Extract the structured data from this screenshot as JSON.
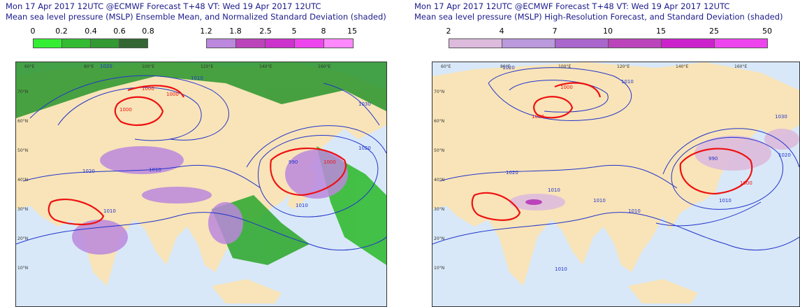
{
  "left_panel": {
    "title_line1": "Mon 17 Apr 2017 12UTC @ECMWF Forecast T+48 VT: Wed 19 Apr 2017 12UTC",
    "title_line2": "Mean sea level pressure (MSLP) Ensemble Mean, and Normalized Standard Deviation (shaded)",
    "colorbar_green": {
      "labels": [
        "0",
        "0.2",
        "0.4",
        "0.6",
        "0.8"
      ],
      "colors": [
        "#33ee33",
        "#33bb33",
        "#339933",
        "#336633"
      ]
    },
    "colorbar_purple": {
      "labels": [
        "1.2",
        "1.8",
        "2.5",
        "5",
        "8",
        "15"
      ],
      "colors": [
        "#bb88dd",
        "#bb44bb",
        "#cc33cc",
        "#ee44ee",
        "#ff88ff"
      ]
    },
    "contour_labels": [
      "1020",
      "1010",
      "1000",
      "1000",
      "1000",
      "990",
      "1000",
      "1010",
      "1020",
      "1010",
      "1010",
      "1030",
      "1020"
    ]
  },
  "right_panel": {
    "title_line1": "Mon 17 Apr 2017 12UTC @ECMWF Forecast T+48 VT: Wed 19 Apr 2017 12UTC",
    "title_line2": "Mean sea level pressure (MSLP) High-Resolution Forecast, and Standard Deviation (shaded)",
    "colorbar": {
      "labels": [
        "2",
        "4",
        "7",
        "10",
        "15",
        "25",
        "50"
      ],
      "colors": [
        "#ddbbdd",
        "#bb99dd",
        "#aa66cc",
        "#bb44bb",
        "#cc22cc",
        "#ee44ee"
      ]
    },
    "contour_labels": [
      "1020",
      "1010",
      "1000",
      "1000",
      "1000",
      "990",
      "1020",
      "1010",
      "1010",
      "1010",
      "1010",
      "1030",
      "1020",
      "1010"
    ]
  },
  "map_ticks": {
    "lon": [
      "60°E",
      "80°E",
      "100°E",
      "120°E",
      "140°E",
      "160°E"
    ],
    "lat": [
      "70°N",
      "60°N",
      "50°N",
      "40°N",
      "30°N",
      "20°N",
      "10°N"
    ]
  },
  "colors": {
    "title": "#1a1a8a",
    "ocean": "#d8e8f8",
    "land": "#f8e4b8",
    "contour": "#2233cc",
    "low_contour": "#ee1111"
  }
}
